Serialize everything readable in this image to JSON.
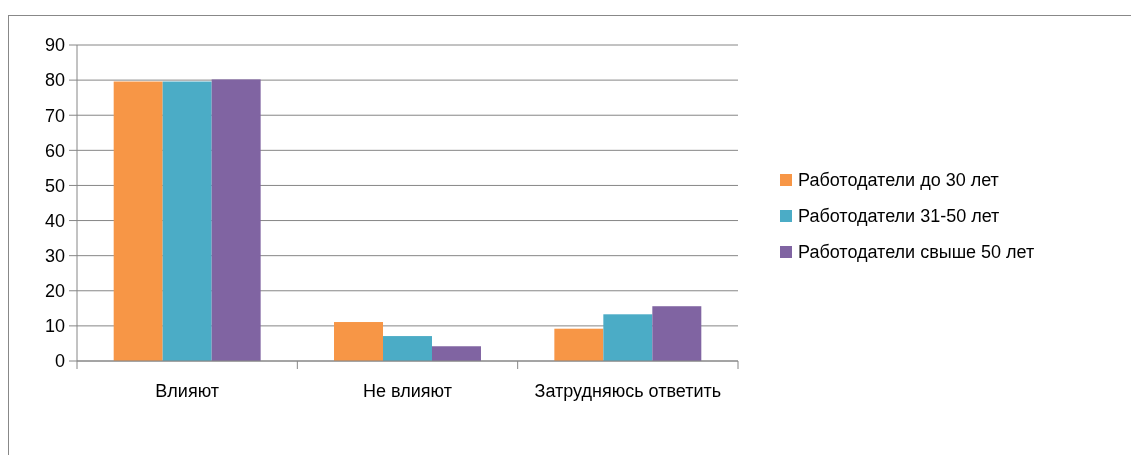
{
  "chart_data": {
    "type": "bar",
    "categories": [
      "Влияют",
      "Не влияют",
      "Затрудняюсь ответить"
    ],
    "series": [
      {
        "name": "Работодатели до 30 лет",
        "color": "#f79646",
        "values": [
          79.6,
          11.1,
          9.2
        ]
      },
      {
        "name": "Работодатели 31-50 лет",
        "color": "#4bacc6",
        "values": [
          79.6,
          7.1,
          13.3
        ]
      },
      {
        "name": "Работодатели свыше 50 лет",
        "color": "#8064a2",
        "values": [
          80.2,
          4.2,
          15.6
        ]
      }
    ],
    "ylim": [
      0,
      90
    ],
    "yticks": [
      0,
      10,
      20,
      30,
      40,
      50,
      60,
      70,
      80,
      90
    ],
    "grid": "y",
    "legend": "right"
  }
}
